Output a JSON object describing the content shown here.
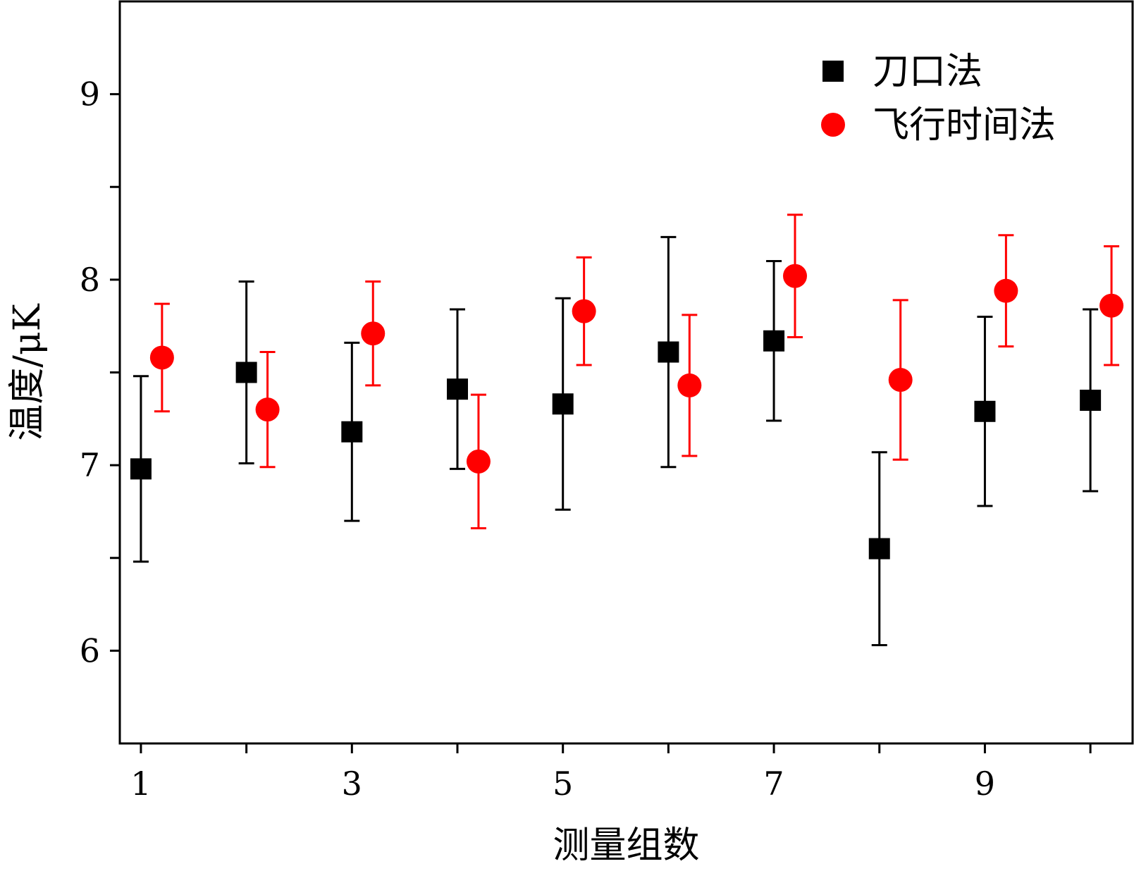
{
  "chart_data": {
    "type": "scatter",
    "xlabel": "测量组数",
    "ylabel": "温度/μK",
    "xlim": [
      0.8,
      10.4
    ],
    "ylim": [
      5.5,
      9.5
    ],
    "x_ticks": [
      1,
      2,
      3,
      4,
      5,
      6,
      7,
      8,
      9,
      10
    ],
    "x_tick_labels": [
      "1",
      "",
      "3",
      "",
      "5",
      "",
      "7",
      "",
      "9",
      ""
    ],
    "y_ticks": [
      6,
      6.5,
      7,
      7.5,
      8,
      8.5,
      9
    ],
    "y_tick_labels": [
      "6",
      "",
      "7",
      "",
      "8",
      "",
      "9"
    ],
    "legend_position": "top-right",
    "grid": false,
    "series": [
      {
        "name": "刀口法",
        "marker": "square",
        "color": "#000000",
        "x": [
          1,
          2,
          3,
          4,
          5,
          6,
          7,
          8,
          9,
          10
        ],
        "y": [
          6.98,
          7.5,
          7.18,
          7.41,
          7.33,
          7.61,
          7.67,
          6.55,
          7.29,
          7.35
        ],
        "error": [
          0.5,
          0.49,
          0.48,
          0.43,
          0.57,
          0.62,
          0.43,
          0.52,
          0.51,
          0.49
        ]
      },
      {
        "name": "飞行时间法",
        "marker": "circle",
        "color": "#ff0000",
        "x": [
          1.2,
          2.2,
          3.2,
          4.2,
          5.2,
          6.2,
          7.2,
          8.2,
          9.2,
          10.2
        ],
        "y": [
          7.58,
          7.3,
          7.71,
          7.02,
          7.83,
          7.43,
          8.02,
          7.46,
          7.94,
          7.86
        ],
        "error": [
          0.29,
          0.31,
          0.28,
          0.36,
          0.29,
          0.38,
          0.33,
          0.43,
          0.3,
          0.32
        ]
      }
    ]
  }
}
